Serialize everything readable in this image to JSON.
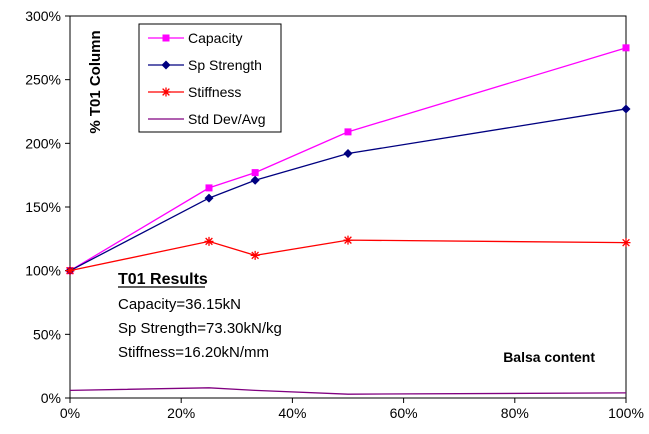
{
  "chart_data": {
    "type": "line",
    "xlabel": "Balsa content",
    "ylabel": "% T01 Column",
    "x_ticks": [
      "0%",
      "20%",
      "40%",
      "60%",
      "80%",
      "100%"
    ],
    "y_ticks": [
      "0%",
      "50%",
      "100%",
      "150%",
      "200%",
      "250%",
      "300%"
    ],
    "xlim": [
      0,
      100
    ],
    "ylim": [
      0,
      300
    ],
    "grid": false,
    "legend_position": "top-left",
    "series": [
      {
        "name": "Capacity",
        "color": "#ff00ff",
        "marker": "square",
        "x": [
          0,
          25,
          33.3,
          50,
          100
        ],
        "y": [
          100,
          165,
          177,
          209,
          275
        ]
      },
      {
        "name": "Sp Strength",
        "color": "#000080",
        "marker": "diamond",
        "x": [
          0,
          25,
          33.3,
          50,
          100
        ],
        "y": [
          100,
          157,
          171,
          192,
          227
        ]
      },
      {
        "name": "Stiffness",
        "color": "#ff0000",
        "marker": "star",
        "x": [
          0,
          25,
          33.3,
          50,
          100
        ],
        "y": [
          100,
          123,
          112,
          124,
          122
        ]
      },
      {
        "name": "Std Dev/Avg",
        "color": "#800080",
        "marker": "none",
        "x": [
          0,
          25,
          33.3,
          50,
          100
        ],
        "y": [
          6,
          8,
          6,
          3,
          4
        ]
      }
    ],
    "annotation": {
      "title": "T01 Results",
      "lines": [
        "Capacity=36.15kN",
        "Sp Strength=73.30kN/kg",
        "Stiffness=16.20kN/mm"
      ]
    }
  }
}
